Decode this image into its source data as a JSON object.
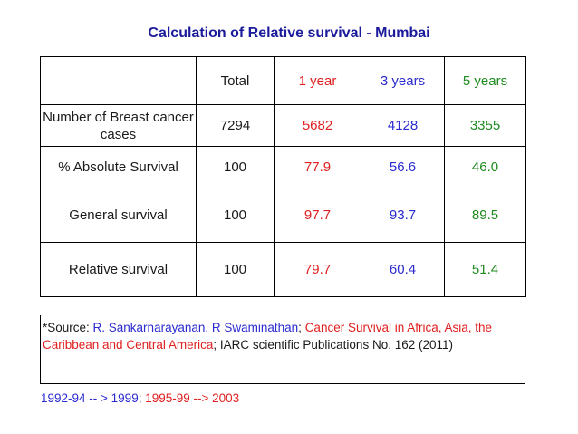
{
  "title": "Calculation of Relative survival - Mumbai",
  "table": {
    "headers": [
      "",
      "Total",
      "1 year",
      "3 years",
      "5 years"
    ],
    "rows": [
      {
        "label": "Number of Breast cancer cases",
        "values": [
          "7294",
          "5682",
          "4128",
          "3355"
        ]
      },
      {
        "label": "% Absolute Survival",
        "values": [
          "100",
          "77.9",
          "56.6",
          "46.0"
        ]
      },
      {
        "label": "General survival",
        "values": [
          "100",
          "97.7",
          "93.7",
          "89.5"
        ]
      },
      {
        "label": "Relative survival",
        "values": [
          "100",
          "79.7",
          "60.4",
          "51.4"
        ]
      }
    ]
  },
  "source": {
    "prefix": "*Source: ",
    "authors": "R. Sankarnarayanan, R Swaminathan",
    "sep1": "; ",
    "book": "Cancer Survival in Africa, Asia, the Caribbean and Central America",
    "sep2": "; ",
    "publisher": "IARC scientific Publications No. 162 (2011)"
  },
  "note": {
    "part1": "1992-94  -- > 1999",
    "sep": ";  ",
    "part2": "1995-99 --> 2003"
  },
  "colors": {
    "title": "#1b1b9b",
    "one_year": "#e02020",
    "three_years": "#2b2bd0",
    "five_years": "#1f8a1f"
  }
}
